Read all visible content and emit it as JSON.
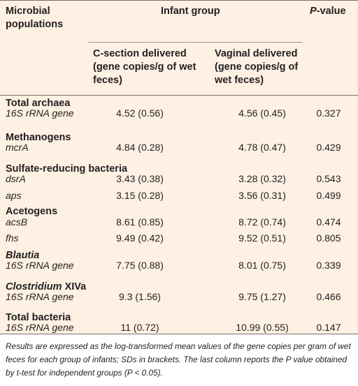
{
  "header": {
    "col1": "Microbial populations",
    "group": "Infant group",
    "pvalue_prefix": "P",
    "pvalue_suffix": "-value",
    "csection": "C-section delivered (gene copies/g of wet feces)",
    "vaginal": "Vaginal delivered (gene copies/g of wet feces)"
  },
  "groups": [
    {
      "name": "Total archaea",
      "italic": false,
      "suffix": "",
      "rows": [
        {
          "label": "16S rRNA gene",
          "csection": "4.52 (0.56)",
          "vaginal": "4.56 (0.45)",
          "p": "0.327"
        }
      ]
    },
    {
      "name": "Methanogens",
      "italic": false,
      "suffix": "",
      "rows": [
        {
          "label": "mcrA",
          "csection": "4.84 (0.28)",
          "vaginal": "4.78 (0.47)",
          "p": "0.429"
        }
      ]
    },
    {
      "name": "Sulfate-reducing bacteria",
      "italic": false,
      "suffix": "",
      "rows": [
        {
          "label": "dsrA",
          "csection": "3.43 (0.38)",
          "vaginal": "3.28 (0.32)",
          "p": "0.543"
        },
        {
          "label": "aps",
          "csection": "3.15 (0.28)",
          "vaginal": "3.56 (0.31)",
          "p": "0.499"
        }
      ]
    },
    {
      "name": "Acetogens",
      "italic": false,
      "suffix": "",
      "rows": [
        {
          "label": "acsB",
          "csection": "8.61 (0.85)",
          "vaginal": "8.72 (0.74)",
          "p": "0.474"
        },
        {
          "label": "fhs",
          "csection": "9.49 (0.42)",
          "vaginal": "9.52 (0.51)",
          "p": "0.805"
        }
      ]
    },
    {
      "name": "Blautia",
      "italic": true,
      "suffix": "",
      "rows": [
        {
          "label": "16S rRNA gene",
          "csection": "7.75 (0.88)",
          "vaginal": "8.01 (0.75)",
          "p": "0.339"
        }
      ]
    },
    {
      "name": "Clostridium",
      "italic": true,
      "suffix": " XIVa",
      "rows": [
        {
          "label": "16S rRNA gene",
          "csection": "9.3 (1.56)",
          "vaginal": "9.75 (1.27)",
          "p": "0.466"
        }
      ]
    },
    {
      "name": "Total bacteria",
      "italic": false,
      "suffix": "",
      "rows": [
        {
          "label": "16S rRNA gene",
          "csection": "11 (0.72)",
          "vaginal": "10.99 (0.55)",
          "p": "0.147"
        }
      ]
    }
  ],
  "footnote": "Results are expressed as the log-transformed mean values of the gene copies per gram of wet feces for each group of infants; SDs in brackets. The last column reports the P value obtained by t-test for independent groups (P < 0.05)."
}
